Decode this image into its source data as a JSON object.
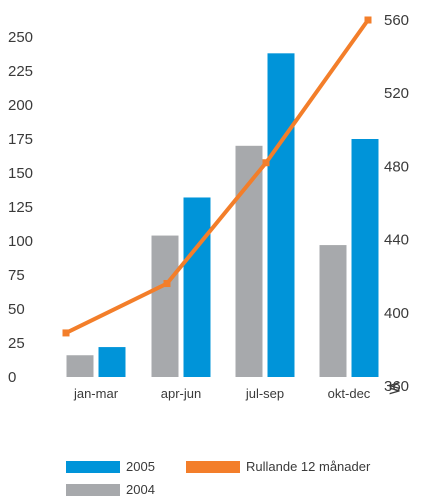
{
  "chart_data": {
    "type": "bar",
    "categories": [
      "jan-mar",
      "apr-jun",
      "jul-sep",
      "okt-dec"
    ],
    "series": [
      {
        "name": "2004",
        "type": "bar",
        "axis": "left",
        "color": "#a7a9ac",
        "values": [
          16,
          104,
          170,
          97
        ]
      },
      {
        "name": "2005",
        "type": "bar",
        "axis": "left",
        "color": "#0094d9",
        "values": [
          22,
          132,
          238,
          175
        ]
      },
      {
        "name": "Rullande 12 månader",
        "type": "line",
        "axis": "right",
        "color": "#f37e2a",
        "values": [
          389,
          416,
          482,
          560
        ]
      }
    ],
    "y_left": {
      "min": 0,
      "max": 250,
      "ticks": [
        "0",
        "25",
        "50",
        "75",
        "100",
        "125",
        "150",
        "175",
        "200",
        "225",
        "250"
      ]
    },
    "y_right": {
      "min": 360,
      "max": 560,
      "ticks": [
        "360",
        "400",
        "440",
        "480",
        "520",
        "560"
      ],
      "axis_break": true
    },
    "grid": false,
    "legend_position": "bottom",
    "title": "",
    "xlabel": "",
    "ylabel": ""
  },
  "legend": {
    "item_2005": "2005",
    "item_2004": "2004",
    "item_rolling": "Rullande 12 månader",
    "break_glyph": "≶"
  }
}
